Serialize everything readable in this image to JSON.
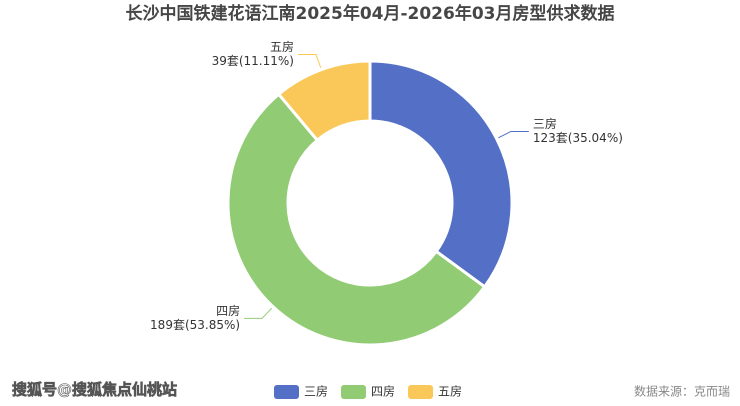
{
  "chart_data": {
    "type": "pie",
    "donut": true,
    "title": "长沙中国铁建花语江南2025年04月-2026年03月房型供求数据",
    "categories": [
      "三房",
      "四房",
      "五房"
    ],
    "values": [
      123,
      189,
      39
    ],
    "value_labels": [
      "123套(35.04%)",
      "189套(53.85%)",
      "39套(11.11%)"
    ],
    "colors": [
      "#5470c6",
      "#91cc75",
      "#fac858"
    ],
    "legend": "bottom"
  },
  "watermark": "搜狐号@搜狐焦点仙桃站",
  "source": "数据来源：克而瑞"
}
